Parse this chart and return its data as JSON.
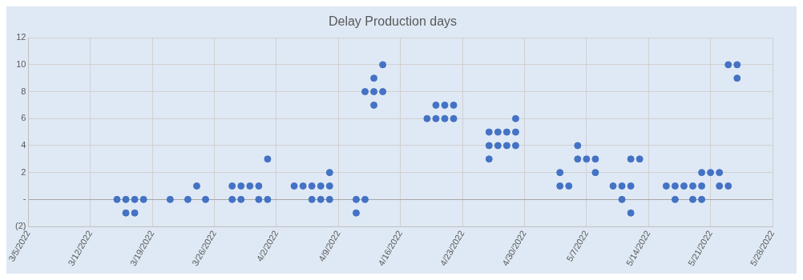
{
  "chart_data": {
    "type": "scatter",
    "title": "Delay Production days",
    "x": [
      "2022-03-15",
      "2022-03-16",
      "2022-03-16",
      "2022-03-17",
      "2022-03-17",
      "2022-03-18",
      "2022-03-21",
      "2022-03-23",
      "2022-03-24",
      "2022-03-25",
      "2022-03-28",
      "2022-03-28",
      "2022-03-29",
      "2022-03-29",
      "2022-03-30",
      "2022-03-31",
      "2022-03-31",
      "2022-04-01",
      "2022-04-01",
      "2022-04-04",
      "2022-04-05",
      "2022-04-06",
      "2022-04-06",
      "2022-04-07",
      "2022-04-07",
      "2022-04-08",
      "2022-04-08",
      "2022-04-08",
      "2022-04-11",
      "2022-04-11",
      "2022-04-12",
      "2022-04-12",
      "2022-04-13",
      "2022-04-13",
      "2022-04-13",
      "2022-04-14",
      "2022-04-14",
      "2022-04-19",
      "2022-04-20",
      "2022-04-20",
      "2022-04-21",
      "2022-04-21",
      "2022-04-22",
      "2022-04-22",
      "2022-04-26",
      "2022-04-26",
      "2022-04-26",
      "2022-04-27",
      "2022-04-27",
      "2022-04-28",
      "2022-04-28",
      "2022-04-29",
      "2022-04-29",
      "2022-04-29",
      "2022-05-04",
      "2022-05-04",
      "2022-05-05",
      "2022-05-06",
      "2022-05-06",
      "2022-05-07",
      "2022-05-08",
      "2022-05-08",
      "2022-05-10",
      "2022-05-11",
      "2022-05-11",
      "2022-05-12",
      "2022-05-12",
      "2022-05-12",
      "2022-05-13",
      "2022-05-16",
      "2022-05-17",
      "2022-05-17",
      "2022-05-18",
      "2022-05-19",
      "2022-05-19",
      "2022-05-20",
      "2022-05-20",
      "2022-05-20",
      "2022-05-21",
      "2022-05-22",
      "2022-05-22",
      "2022-05-23",
      "2022-05-23",
      "2022-05-24",
      "2022-05-24"
    ],
    "series": [
      {
        "color": "#4472c4",
        "values": [
          0,
          0,
          -1,
          0,
          -1,
          0,
          0,
          0,
          1,
          0,
          1,
          0,
          1,
          0,
          1,
          1,
          0,
          3,
          0,
          1,
          1,
          1,
          0,
          1,
          0,
          2,
          1,
          0,
          0,
          -1,
          8,
          0,
          9,
          8,
          7,
          10,
          8,
          6,
          7,
          6,
          7,
          6,
          7,
          6,
          5,
          4,
          3,
          5,
          4,
          5,
          4,
          6,
          5,
          4,
          2,
          1,
          1,
          4,
          3,
          3,
          3,
          2,
          1,
          1,
          0,
          3,
          1,
          -1,
          3,
          1,
          1,
          0,
          1,
          1,
          0,
          2,
          1,
          0,
          2,
          2,
          1,
          1,
          10,
          10,
          9
        ]
      }
    ],
    "xlim": [
      "2022-03-05",
      "2022-05-28"
    ],
    "xticks": [
      {
        "value": "2022-03-05",
        "label": "3/5/2022"
      },
      {
        "value": "2022-03-12",
        "label": "3/12/2022"
      },
      {
        "value": "2022-03-19",
        "label": "3/19/2022"
      },
      {
        "value": "2022-03-26",
        "label": "3/26/2022"
      },
      {
        "value": "2022-04-02",
        "label": "4/2/2022"
      },
      {
        "value": "2022-04-09",
        "label": "4/9/2022"
      },
      {
        "value": "2022-04-16",
        "label": "4/16/2022"
      },
      {
        "value": "2022-04-23",
        "label": "4/23/2022"
      },
      {
        "value": "2022-04-30",
        "label": "4/30/2022"
      },
      {
        "value": "2022-05-07",
        "label": "5/7/2022"
      },
      {
        "value": "2022-05-14",
        "label": "5/14/2022"
      },
      {
        "value": "2022-05-21",
        "label": "5/21/2022"
      },
      {
        "value": "2022-05-28",
        "label": "5/28/2022"
      }
    ],
    "ylim": [
      -2,
      12
    ],
    "yticks": [
      {
        "value": -2,
        "label": "(2)"
      },
      {
        "value": 0,
        "label": "-"
      },
      2,
      4,
      6,
      8,
      10,
      12
    ],
    "grid": true,
    "marker": "circle"
  }
}
